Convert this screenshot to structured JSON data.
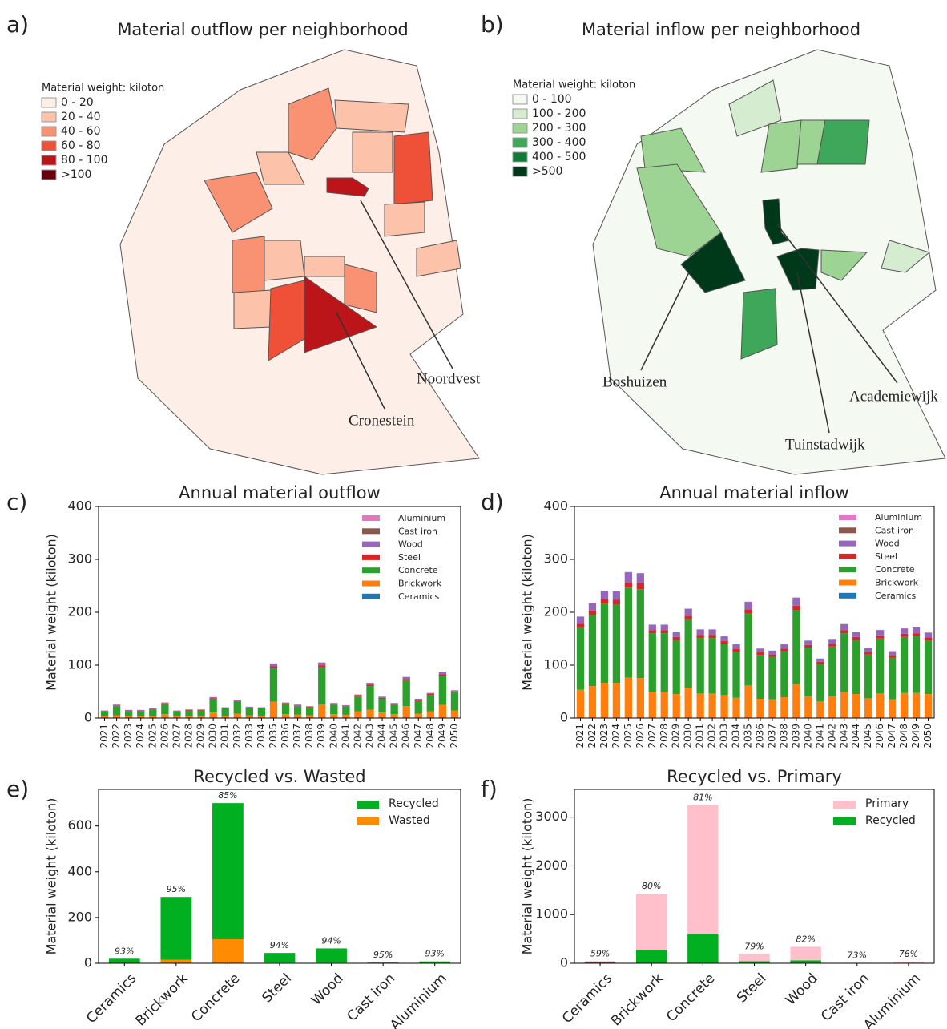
{
  "maps": [
    {
      "panel_label": "a)",
      "title": "Material outflow per neighborhood",
      "legend_title": "Material weight: kiloton",
      "legend": [
        {
          "label": "0 - 20",
          "color": "#fdeee8"
        },
        {
          "label": "20 - 40",
          "color": "#fcc3aa"
        },
        {
          "label": "40 - 60",
          "color": "#f99272"
        },
        {
          "label": "60 - 80",
          "color": "#ef5038"
        },
        {
          "label": "80 - 100",
          "color": "#bb1419"
        },
        {
          "label": ">100",
          "color": "#67000d"
        }
      ],
      "annotations": [
        "Noordvest",
        "Cronestein"
      ]
    },
    {
      "panel_label": "b)",
      "title": "Material inflow per neighborhood",
      "legend_title": "Material weight: kiloton",
      "legend": [
        {
          "label": "0 - 100",
          "color": "#f4f9f2"
        },
        {
          "label": "100 - 200",
          "color": "#d5ecd0"
        },
        {
          "label": "200 - 300",
          "color": "#9dd494"
        },
        {
          "label": "300 - 400",
          "color": "#3fa75a"
        },
        {
          "label": "400 - 500",
          "color": "#107a38"
        },
        {
          "label": ">500",
          "color": "#00381a"
        }
      ],
      "annotations": [
        "Boshuizen",
        "Academiewijk",
        "Tuinstadwijk"
      ]
    }
  ],
  "chart_data": [
    {
      "type": "stacked_bar",
      "panel_label": "c)",
      "title": "Annual material outflow",
      "ylabel": "Material weight (kiloton)",
      "categories": [
        "2021",
        "2022",
        "2023",
        "2024",
        "2025",
        "2026",
        "2027",
        "2028",
        "2029",
        "2030",
        "2031",
        "2032",
        "2033",
        "2034",
        "2035",
        "2036",
        "2037",
        "2038",
        "2039",
        "2040",
        "2041",
        "2042",
        "2043",
        "2044",
        "2045",
        "2046",
        "2047",
        "2048",
        "2049",
        "2050"
      ],
      "ylim": [
        0,
        400
      ],
      "yticks": [
        0,
        100,
        200,
        300,
        400
      ],
      "series": [
        {
          "name": "Aluminium",
          "color": "#e377c2",
          "values": [
            0.1,
            0.1,
            0.1,
            0.1,
            0.1,
            0.1,
            0.1,
            0.1,
            0.1,
            0.1,
            0.1,
            0.1,
            0.1,
            0.1,
            0.3,
            0.1,
            0.1,
            0.1,
            0.3,
            0.1,
            0.1,
            0.1,
            0.2,
            0.1,
            0.1,
            0.2,
            0.1,
            0.1,
            0.2,
            0.1
          ]
        },
        {
          "name": "Cast iron",
          "color": "#8c564b",
          "values": [
            0.1,
            0.1,
            0.1,
            0.1,
            0.1,
            0.1,
            0.1,
            0.1,
            0.1,
            0.1,
            0.1,
            0.1,
            0.1,
            0.1,
            0.2,
            0.1,
            0.1,
            0.1,
            0.2,
            0.1,
            0.1,
            0.1,
            0.1,
            0.1,
            0.1,
            0.1,
            0.1,
            0.1,
            0.1,
            0.1
          ]
        },
        {
          "name": "Wood",
          "color": "#9467bd",
          "values": [
            1,
            2,
            1,
            1,
            1,
            2,
            1,
            1,
            1,
            2,
            1,
            2,
            1,
            1,
            5,
            2,
            2,
            1,
            5,
            2,
            1,
            2,
            3,
            2,
            2,
            4,
            2,
            2,
            4,
            2
          ]
        },
        {
          "name": "Steel",
          "color": "#d62728",
          "values": [
            1,
            1,
            1,
            1,
            1,
            1,
            1,
            1,
            1,
            2,
            1,
            1,
            1,
            1,
            4,
            1,
            1,
            1,
            4,
            1,
            1,
            2,
            3,
            2,
            1,
            3,
            2,
            2,
            3,
            2
          ]
        },
        {
          "name": "Concrete",
          "color": "#2ca02c",
          "values": [
            9,
            17,
            10,
            10,
            12,
            19,
            9,
            11,
            11,
            25,
            14,
            23,
            14,
            14,
            63,
            19,
            16,
            15,
            70,
            18,
            16,
            28,
            45,
            26,
            18,
            48,
            24,
            31,
            55,
            34
          ]
        },
        {
          "name": "Brickwork",
          "color": "#ff7f0e",
          "values": [
            3,
            5,
            3,
            3,
            4,
            7,
            3,
            3,
            3,
            10,
            4,
            8,
            5,
            4,
            30,
            7,
            6,
            5,
            25,
            7,
            6,
            12,
            15,
            10,
            7,
            22,
            8,
            12,
            24,
            14
          ]
        },
        {
          "name": "Ceramics",
          "color": "#1f77b4",
          "values": [
            0.2,
            0.3,
            0.2,
            0.2,
            0.2,
            0.3,
            0.2,
            0.2,
            0.2,
            0.4,
            0.2,
            0.3,
            0.2,
            0.2,
            0.8,
            0.3,
            0.3,
            0.2,
            0.8,
            0.3,
            0.2,
            0.4,
            0.5,
            0.3,
            0.3,
            0.6,
            0.3,
            0.4,
            0.7,
            0.4
          ]
        }
      ]
    },
    {
      "type": "stacked_bar",
      "panel_label": "d)",
      "title": "Annual material inflow",
      "ylabel": "Material weight (kiloton)",
      "categories": [
        "2021",
        "2022",
        "2023",
        "2024",
        "2025",
        "2026",
        "2027",
        "2028",
        "2029",
        "2030",
        "2031",
        "2032",
        "2033",
        "2034",
        "2035",
        "2036",
        "2037",
        "2038",
        "2039",
        "2040",
        "2041",
        "2042",
        "2043",
        "2044",
        "2045",
        "2046",
        "2047",
        "2048",
        "2049",
        "2050"
      ],
      "ylim": [
        0,
        400
      ],
      "yticks": [
        0,
        100,
        200,
        300,
        400
      ],
      "series": [
        {
          "name": "Aluminium",
          "color": "#e377c2",
          "values": [
            0.3,
            0.3,
            0.3,
            0.3,
            0.4,
            0.4,
            0.2,
            0.2,
            0.2,
            0.3,
            0.2,
            0.2,
            0.2,
            0.2,
            0.3,
            0.2,
            0.2,
            0.2,
            0.3,
            0.2,
            0.2,
            0.2,
            0.3,
            0.2,
            0.2,
            0.2,
            0.2,
            0.2,
            0.3,
            0.2
          ]
        },
        {
          "name": "Cast iron",
          "color": "#8c564b",
          "values": [
            0.2,
            0.2,
            0.2,
            0.2,
            0.2,
            0.2,
            0.1,
            0.1,
            0.1,
            0.2,
            0.1,
            0.1,
            0.1,
            0.1,
            0.2,
            0.1,
            0.1,
            0.1,
            0.2,
            0.1,
            0.1,
            0.1,
            0.1,
            0.1,
            0.1,
            0.1,
            0.1,
            0.1,
            0.1,
            0.1
          ]
        },
        {
          "name": "Wood",
          "color": "#9467bd",
          "values": [
            13,
            14,
            15,
            16,
            19,
            19,
            10,
            10,
            9,
            13,
            10,
            10,
            9,
            9,
            14,
            7,
            7,
            8,
            15,
            8,
            6,
            9,
            11,
            9,
            7,
            10,
            7,
            10,
            11,
            9
          ]
        },
        {
          "name": "Steel",
          "color": "#d62728",
          "values": [
            7,
            8,
            9,
            9,
            10,
            11,
            6,
            6,
            6,
            7,
            6,
            6,
            6,
            5,
            8,
            5,
            5,
            5,
            8,
            5,
            4,
            5,
            6,
            6,
            5,
            6,
            5,
            6,
            6,
            6
          ]
        },
        {
          "name": "Concrete",
          "color": "#2ca02c",
          "values": [
            118,
            135,
            150,
            148,
            170,
            168,
            111,
            111,
            102,
            129,
            105,
            105,
            96,
            87,
            136,
            83,
            80,
            87,
            141,
            92,
            71,
            94,
            111,
            102,
            83,
            104,
            79,
            106,
            107,
            101
          ]
        },
        {
          "name": "Brickwork",
          "color": "#ff7f0e",
          "values": [
            53,
            60,
            66,
            66,
            76,
            75,
            49,
            49,
            45,
            57,
            46,
            46,
            43,
            38,
            61,
            36,
            35,
            39,
            63,
            41,
            31,
            41,
            49,
            45,
            37,
            46,
            35,
            47,
            47,
            45
          ]
        },
        {
          "name": "Ceramics",
          "color": "#1f77b4",
          "values": [
            0.5,
            0.5,
            0.5,
            0.5,
            0.6,
            0.6,
            0.4,
            0.4,
            0.4,
            0.5,
            0.4,
            0.4,
            0.4,
            0.3,
            0.5,
            0.3,
            0.3,
            0.3,
            0.5,
            0.3,
            0.3,
            0.4,
            0.4,
            0.4,
            0.3,
            0.4,
            0.3,
            0.4,
            0.4,
            0.4
          ]
        }
      ]
    },
    {
      "type": "stacked_bar",
      "panel_label": "e)",
      "title": "Recycled vs. Wasted",
      "ylabel": "Material weight (kiloton)",
      "categories": [
        "Ceramics",
        "Brickwork",
        "Concrete",
        "Steel",
        "Wood",
        "Cast iron",
        "Aluminium"
      ],
      "ylim": [
        0,
        760
      ],
      "yticks": [
        0,
        200,
        400,
        600
      ],
      "value_labels": [
        "93%",
        "95%",
        "85%",
        "94%",
        "94%",
        "95%",
        "93%"
      ],
      "series": [
        {
          "name": "Recycled",
          "color": "#00b020",
          "values": [
            18.6,
            275,
            595,
            42,
            61,
            2.8,
            7.5
          ]
        },
        {
          "name": "Wasted",
          "color": "#ff8c00",
          "values": [
            1.4,
            15,
            105,
            3,
            4,
            0.2,
            0.5
          ]
        }
      ]
    },
    {
      "type": "stacked_bar",
      "panel_label": "f)",
      "title": "Recycled vs. Primary",
      "ylabel": "Material weight (kiloton)",
      "categories": [
        "Ceramics",
        "Brickwork",
        "Concrete",
        "Steel",
        "Wood",
        "Cast iron",
        "Aluminium"
      ],
      "ylim": [
        0,
        3570
      ],
      "yticks": [
        0,
        1000,
        2000,
        3000
      ],
      "value_labels": [
        "59%",
        "80%",
        "81%",
        "79%",
        "82%",
        "73%",
        "76%"
      ],
      "series": [
        {
          "name": "Primary",
          "color": "#ffc0cb",
          "values": [
            26,
            1155,
            2655,
            148,
            279,
            7,
            22.5
          ]
        },
        {
          "name": "Recycled",
          "color": "#00b020",
          "values": [
            18.6,
            275,
            595,
            42,
            61,
            2.8,
            7.5
          ]
        }
      ]
    }
  ]
}
